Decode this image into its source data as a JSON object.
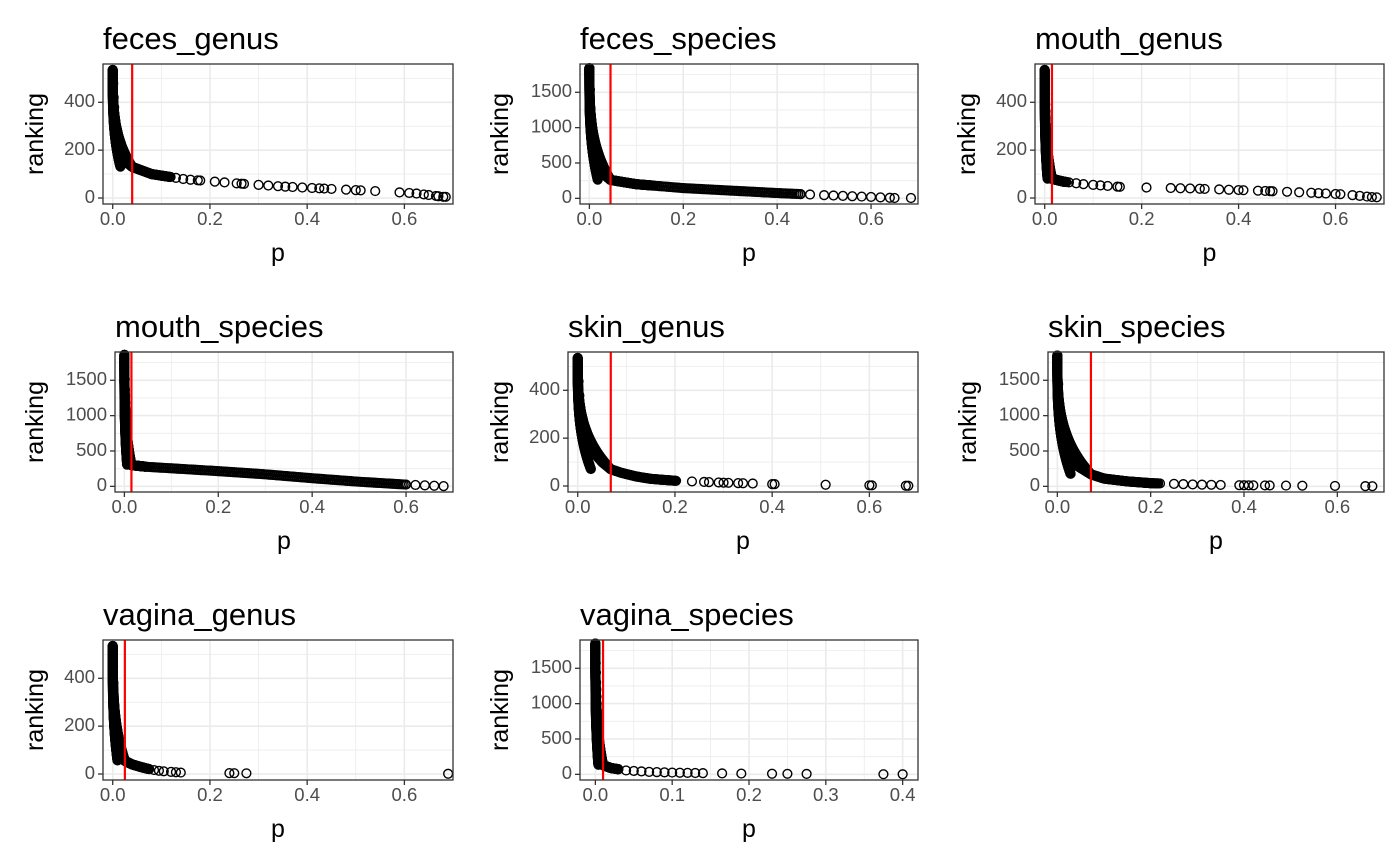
{
  "chart_data": [
    {
      "type": "scatter",
      "title": "feces_genus",
      "xlabel": "p",
      "ylabel": "ranking",
      "xlim": [
        -0.02,
        0.7
      ],
      "ylim": [
        -25,
        560
      ],
      "x_ticks": [
        0.0,
        0.2,
        0.4,
        0.6
      ],
      "x_tick_labels": [
        "0.0",
        "0.2",
        "0.4",
        "0.6"
      ],
      "y_ticks": [
        0,
        200,
        400
      ],
      "y_tick_labels": [
        "0",
        "200",
        "400"
      ],
      "cutoff": 0.04,
      "cutoff_color": "#ff0000",
      "n_max": 535,
      "y_knee": 130,
      "x_knee": 0.04,
      "curve": [
        [
          0.0,
          535
        ],
        [
          0.002,
          420
        ],
        [
          0.005,
          300
        ],
        [
          0.01,
          210
        ],
        [
          0.02,
          165
        ],
        [
          0.04,
          130
        ],
        [
          0.08,
          100
        ],
        [
          0.15,
          78
        ],
        [
          0.25,
          62
        ],
        [
          0.35,
          48
        ],
        [
          0.45,
          38
        ],
        [
          0.55,
          28
        ],
        [
          0.62,
          20
        ],
        [
          0.68,
          5
        ]
      ],
      "tail": [
        0.1,
        0.11,
        0.13,
        0.145,
        0.16,
        0.175,
        0.18,
        0.21,
        0.23,
        0.255,
        0.265,
        0.27,
        0.3,
        0.32,
        0.34,
        0.355,
        0.37,
        0.39,
        0.41,
        0.425,
        0.435,
        0.45,
        0.48,
        0.5,
        0.51,
        0.54,
        0.59,
        0.61,
        0.625,
        0.64,
        0.65,
        0.665,
        0.67,
        0.68,
        0.685
      ]
    },
    {
      "type": "scatter",
      "title": "feces_species",
      "xlabel": "p",
      "ylabel": "ranking",
      "xlim": [
        -0.02,
        0.7
      ],
      "ylim": [
        -80,
        1900
      ],
      "x_ticks": [
        0.0,
        0.2,
        0.4,
        0.6
      ],
      "x_tick_labels": [
        "0.0",
        "0.2",
        "0.4",
        "0.6"
      ],
      "y_ticks": [
        0,
        500,
        1000,
        1500
      ],
      "y_tick_labels": [
        "0",
        "500",
        "1000",
        "1500"
      ],
      "cutoff": 0.045,
      "cutoff_color": "#ff0000",
      "n_max": 1840,
      "y_knee": 260,
      "x_knee": 0.045,
      "curve": [
        [
          0.0,
          1840
        ],
        [
          0.002,
          1300
        ],
        [
          0.005,
          900
        ],
        [
          0.01,
          600
        ],
        [
          0.02,
          400
        ],
        [
          0.045,
          260
        ],
        [
          0.1,
          200
        ],
        [
          0.2,
          145
        ],
        [
          0.3,
          110
        ],
        [
          0.4,
          75
        ],
        [
          0.5,
          45
        ],
        [
          0.6,
          20
        ],
        [
          0.65,
          5
        ]
      ],
      "tail": [
        0.45,
        0.47,
        0.5,
        0.52,
        0.54,
        0.56,
        0.58,
        0.6,
        0.62,
        0.64,
        0.65,
        0.685
      ]
    },
    {
      "type": "scatter",
      "title": "mouth_genus",
      "xlabel": "p",
      "ylabel": "ranking",
      "xlim": [
        -0.02,
        0.7
      ],
      "ylim": [
        -25,
        560
      ],
      "x_ticks": [
        0.0,
        0.2,
        0.4,
        0.6
      ],
      "x_tick_labels": [
        "0.0",
        "0.2",
        "0.4",
        "0.6"
      ],
      "y_ticks": [
        0,
        200,
        400
      ],
      "y_tick_labels": [
        "0",
        "200",
        "400"
      ],
      "cutoff": 0.015,
      "cutoff_color": "#ff0000",
      "n_max": 535,
      "y_knee": 80,
      "x_knee": 0.015,
      "curve": [
        [
          0.0,
          535
        ],
        [
          0.001,
          400
        ],
        [
          0.003,
          250
        ],
        [
          0.006,
          150
        ],
        [
          0.01,
          100
        ],
        [
          0.015,
          80
        ],
        [
          0.04,
          68
        ],
        [
          0.08,
          58
        ],
        [
          0.12,
          52
        ],
        [
          0.16,
          46
        ],
        [
          0.3,
          40
        ],
        [
          0.45,
          30
        ],
        [
          0.55,
          22
        ],
        [
          0.62,
          15
        ],
        [
          0.68,
          3
        ]
      ],
      "tail": [
        0.035,
        0.05,
        0.065,
        0.08,
        0.1,
        0.115,
        0.13,
        0.15,
        0.155,
        0.21,
        0.26,
        0.28,
        0.3,
        0.32,
        0.33,
        0.36,
        0.38,
        0.4,
        0.41,
        0.44,
        0.455,
        0.465,
        0.47,
        0.5,
        0.525,
        0.55,
        0.565,
        0.58,
        0.6,
        0.61,
        0.635,
        0.65,
        0.665,
        0.675,
        0.685
      ]
    },
    {
      "type": "scatter",
      "title": "mouth_species",
      "xlabel": "p",
      "ylabel": "ranking",
      "xlim": [
        -0.02,
        0.7
      ],
      "ylim": [
        -80,
        1900
      ],
      "x_ticks": [
        0.0,
        0.2,
        0.4,
        0.6
      ],
      "x_tick_labels": [
        "0.0",
        "0.2",
        "0.4",
        "0.6"
      ],
      "y_ticks": [
        0,
        500,
        1000,
        1500
      ],
      "y_tick_labels": [
        "0",
        "500",
        "1000",
        "1500"
      ],
      "cutoff": 0.015,
      "cutoff_color": "#ff0000",
      "n_max": 1860,
      "y_knee": 300,
      "x_knee": 0.015,
      "curve": [
        [
          0.0,
          1860
        ],
        [
          0.001,
          1400
        ],
        [
          0.003,
          900
        ],
        [
          0.006,
          600
        ],
        [
          0.01,
          400
        ],
        [
          0.015,
          300
        ],
        [
          0.05,
          275
        ],
        [
          0.1,
          255
        ],
        [
          0.2,
          215
        ],
        [
          0.3,
          170
        ],
        [
          0.4,
          115
        ],
        [
          0.5,
          65
        ],
        [
          0.6,
          25
        ],
        [
          0.68,
          3
        ]
      ],
      "tail": [
        0.6,
        0.62,
        0.64,
        0.66,
        0.68
      ]
    },
    {
      "type": "scatter",
      "title": "skin_genus",
      "xlabel": "p",
      "ylabel": "ranking",
      "xlim": [
        -0.02,
        0.7
      ],
      "ylim": [
        -25,
        560
      ],
      "x_ticks": [
        0.0,
        0.2,
        0.4,
        0.6
      ],
      "x_tick_labels": [
        "0.0",
        "0.2",
        "0.4",
        "0.6"
      ],
      "y_ticks": [
        0,
        200,
        400
      ],
      "y_tick_labels": [
        "0",
        "200",
        "400"
      ],
      "cutoff": 0.068,
      "cutoff_color": "#ff0000",
      "n_max": 535,
      "y_knee": 70,
      "x_knee": 0.068,
      "curve": [
        [
          0.0,
          535
        ],
        [
          0.002,
          420
        ],
        [
          0.005,
          330
        ],
        [
          0.01,
          260
        ],
        [
          0.02,
          190
        ],
        [
          0.035,
          135
        ],
        [
          0.05,
          100
        ],
        [
          0.068,
          70
        ],
        [
          0.09,
          55
        ],
        [
          0.12,
          40
        ],
        [
          0.15,
          30
        ],
        [
          0.2,
          22
        ],
        [
          0.3,
          14
        ],
        [
          0.4,
          8
        ],
        [
          0.68,
          1
        ]
      ],
      "tail": [
        0.15,
        0.17,
        0.19,
        0.235,
        0.26,
        0.27,
        0.29,
        0.3,
        0.31,
        0.33,
        0.34,
        0.36,
        0.4,
        0.405,
        0.51,
        0.6,
        0.605,
        0.675,
        0.68
      ]
    },
    {
      "type": "scatter",
      "title": "skin_species",
      "xlabel": "p",
      "ylabel": "ranking",
      "xlim": [
        -0.02,
        0.7
      ],
      "ylim": [
        -80,
        1900
      ],
      "x_ticks": [
        0.0,
        0.2,
        0.4,
        0.6
      ],
      "x_tick_labels": [
        "0.0",
        "0.2",
        "0.4",
        "0.6"
      ],
      "y_ticks": [
        0,
        500,
        1000,
        1500
      ],
      "y_tick_labels": [
        "0",
        "500",
        "1000",
        "1500"
      ],
      "cutoff": 0.072,
      "cutoff_color": "#ff0000",
      "n_max": 1850,
      "y_knee": 170,
      "x_knee": 0.072,
      "curve": [
        [
          0.0,
          1850
        ],
        [
          0.002,
          1400
        ],
        [
          0.005,
          1000
        ],
        [
          0.01,
          750
        ],
        [
          0.02,
          500
        ],
        [
          0.04,
          300
        ],
        [
          0.072,
          170
        ],
        [
          0.1,
          110
        ],
        [
          0.15,
          70
        ],
        [
          0.2,
          45
        ],
        [
          0.3,
          25
        ],
        [
          0.4,
          15
        ],
        [
          0.68,
          2
        ]
      ],
      "tail": [
        0.2,
        0.22,
        0.25,
        0.27,
        0.29,
        0.31,
        0.33,
        0.35,
        0.39,
        0.4,
        0.41,
        0.42,
        0.445,
        0.455,
        0.49,
        0.525,
        0.595,
        0.66,
        0.675
      ]
    },
    {
      "type": "scatter",
      "title": "vagina_genus",
      "xlabel": "p",
      "ylabel": "ranking",
      "xlim": [
        -0.02,
        0.7
      ],
      "ylim": [
        -25,
        560
      ],
      "x_ticks": [
        0.0,
        0.2,
        0.4,
        0.6
      ],
      "x_tick_labels": [
        "0.0",
        "0.2",
        "0.4",
        "0.6"
      ],
      "y_ticks": [
        0,
        200,
        400
      ],
      "y_tick_labels": [
        "0",
        "200",
        "400"
      ],
      "cutoff": 0.025,
      "cutoff_color": "#ff0000",
      "n_max": 535,
      "y_knee": 55,
      "x_knee": 0.025,
      "curve": [
        [
          0.0,
          535
        ],
        [
          0.001,
          400
        ],
        [
          0.003,
          250
        ],
        [
          0.006,
          150
        ],
        [
          0.01,
          100
        ],
        [
          0.015,
          75
        ],
        [
          0.025,
          55
        ],
        [
          0.04,
          40
        ],
        [
          0.06,
          28
        ],
        [
          0.08,
          18
        ],
        [
          0.1,
          12
        ],
        [
          0.14,
          6
        ],
        [
          0.27,
          3
        ],
        [
          0.69,
          1
        ]
      ],
      "tail": [
        0.035,
        0.045,
        0.055,
        0.065,
        0.075,
        0.085,
        0.095,
        0.105,
        0.12,
        0.13,
        0.14,
        0.24,
        0.25,
        0.275,
        0.69
      ]
    },
    {
      "type": "scatter",
      "title": "vagina_species",
      "xlabel": "p",
      "ylabel": "ranking",
      "xlim": [
        -0.02,
        0.42
      ],
      "ylim": [
        -80,
        1900
      ],
      "x_ticks": [
        0.0,
        0.1,
        0.2,
        0.3,
        0.4
      ],
      "x_tick_labels": [
        "0.0",
        "0.1",
        "0.2",
        "0.3",
        "0.4"
      ],
      "y_ticks": [
        0,
        500,
        1000,
        1500
      ],
      "y_tick_labels": [
        "0",
        "500",
        "1000",
        "1500"
      ],
      "cutoff": 0.01,
      "cutoff_color": "#ff0000",
      "n_max": 1850,
      "y_knee": 130,
      "x_knee": 0.01,
      "curve": [
        [
          0.0,
          1850
        ],
        [
          0.001,
          1300
        ],
        [
          0.002,
          900
        ],
        [
          0.004,
          500
        ],
        [
          0.007,
          250
        ],
        [
          0.01,
          130
        ],
        [
          0.02,
          90
        ],
        [
          0.04,
          55
        ],
        [
          0.07,
          35
        ],
        [
          0.1,
          25
        ],
        [
          0.15,
          15
        ],
        [
          0.2,
          10
        ],
        [
          0.3,
          5
        ],
        [
          0.4,
          1
        ]
      ],
      "tail": [
        0.02,
        0.03,
        0.04,
        0.05,
        0.06,
        0.07,
        0.08,
        0.09,
        0.1,
        0.11,
        0.12,
        0.13,
        0.14,
        0.165,
        0.19,
        0.23,
        0.25,
        0.275,
        0.375,
        0.4
      ]
    }
  ]
}
